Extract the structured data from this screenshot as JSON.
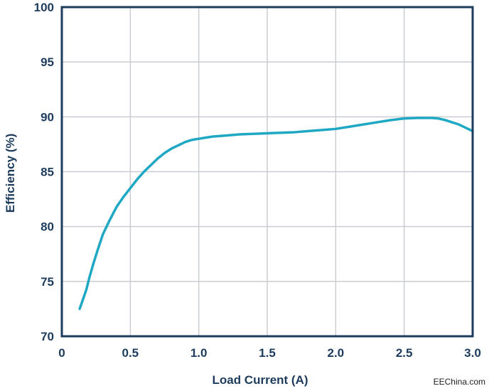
{
  "chart_data": {
    "type": "line",
    "title": "",
    "xlabel": "Load Current (A)",
    "ylabel": "Efficiency (%)",
    "xlim": [
      0,
      3.0
    ],
    "ylim": [
      70,
      100
    ],
    "x_ticks": [
      "0",
      "0.5",
      "1.0",
      "1.5",
      "2.0",
      "2.5",
      "3.0"
    ],
    "y_ticks": [
      "70",
      "75",
      "80",
      "85",
      "90",
      "95",
      "100"
    ],
    "grid": true,
    "series": [
      {
        "color": "#1fa8c4",
        "x": [
          0.13,
          0.15,
          0.18,
          0.2,
          0.23,
          0.26,
          0.3,
          0.35,
          0.4,
          0.45,
          0.5,
          0.55,
          0.6,
          0.65,
          0.7,
          0.75,
          0.8,
          0.85,
          0.9,
          0.95,
          1.0,
          1.05,
          1.1,
          1.2,
          1.3,
          1.4,
          1.5,
          1.6,
          1.7,
          1.8,
          1.9,
          2.0,
          2.1,
          2.2,
          2.3,
          2.4,
          2.5,
          2.6,
          2.7,
          2.75,
          2.8,
          2.85,
          2.9,
          2.95,
          3.0
        ],
        "y": [
          72.5,
          73.2,
          74.3,
          75.3,
          76.6,
          77.8,
          79.3,
          80.6,
          81.8,
          82.7,
          83.5,
          84.3,
          85.0,
          85.6,
          86.2,
          86.7,
          87.1,
          87.4,
          87.7,
          87.9,
          88.0,
          88.1,
          88.2,
          88.3,
          88.4,
          88.45,
          88.5,
          88.55,
          88.6,
          88.7,
          88.8,
          88.9,
          89.1,
          89.3,
          89.5,
          89.7,
          89.85,
          89.9,
          89.9,
          89.85,
          89.7,
          89.5,
          89.3,
          89.0,
          88.7
        ]
      }
    ]
  },
  "watermark": "EEChina.com"
}
